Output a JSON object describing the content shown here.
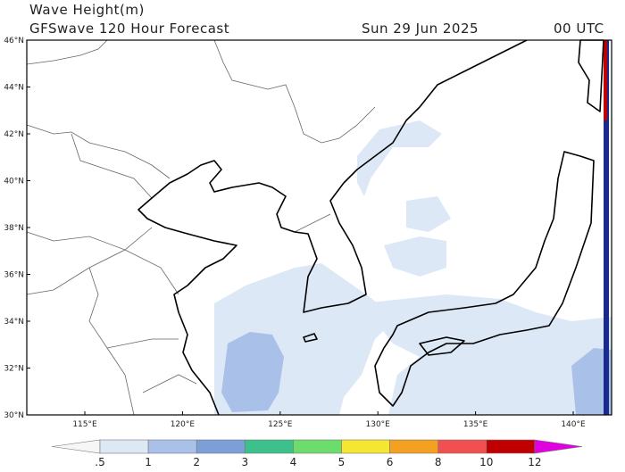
{
  "header": {
    "title": "Wave Height(m)",
    "subtitle": "GFSwave 120 Hour Forecast",
    "date": "Sun 29 Jun 2025",
    "time": "00 UTC"
  },
  "map": {
    "lat_labels": [
      "46°N",
      "44°N",
      "42°N",
      "40°N",
      "38°N",
      "36°N",
      "34°N",
      "32°N",
      "30°N"
    ],
    "lon_labels": [
      "115°E",
      "120°E",
      "125°E",
      "130°E",
      "135°E",
      "140°E"
    ]
  },
  "colorbar": {
    "labels": [
      ".5",
      "1",
      "2",
      "3",
      "4",
      "5",
      "6",
      "8",
      "10",
      "12"
    ]
  }
}
